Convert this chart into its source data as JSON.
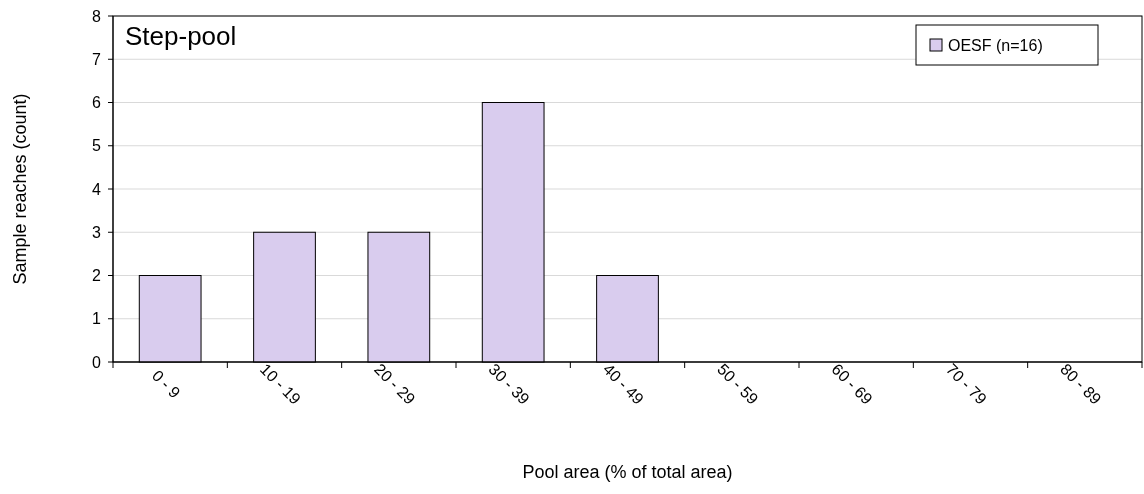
{
  "chart_data": {
    "type": "bar",
    "title": "Step-pool",
    "xlabel": "Pool area (% of total area)",
    "ylabel": "Sample reaches (count)",
    "categories": [
      "0 - 9",
      "10 - 19",
      "20 - 29",
      "30 - 39",
      "40 - 49",
      "50 - 59",
      "60 - 69",
      "70 - 79",
      "80 - 89"
    ],
    "series": [
      {
        "name": "OESF (n=16)",
        "color": "#d9ccee",
        "values": [
          2,
          3,
          3,
          6,
          2,
          0,
          0,
          0,
          0
        ]
      }
    ],
    "ylim": [
      0,
      8
    ],
    "yticks": [
      0,
      1,
      2,
      3,
      4,
      5,
      6,
      7,
      8
    ],
    "grid": "y",
    "legend": "top right"
  }
}
